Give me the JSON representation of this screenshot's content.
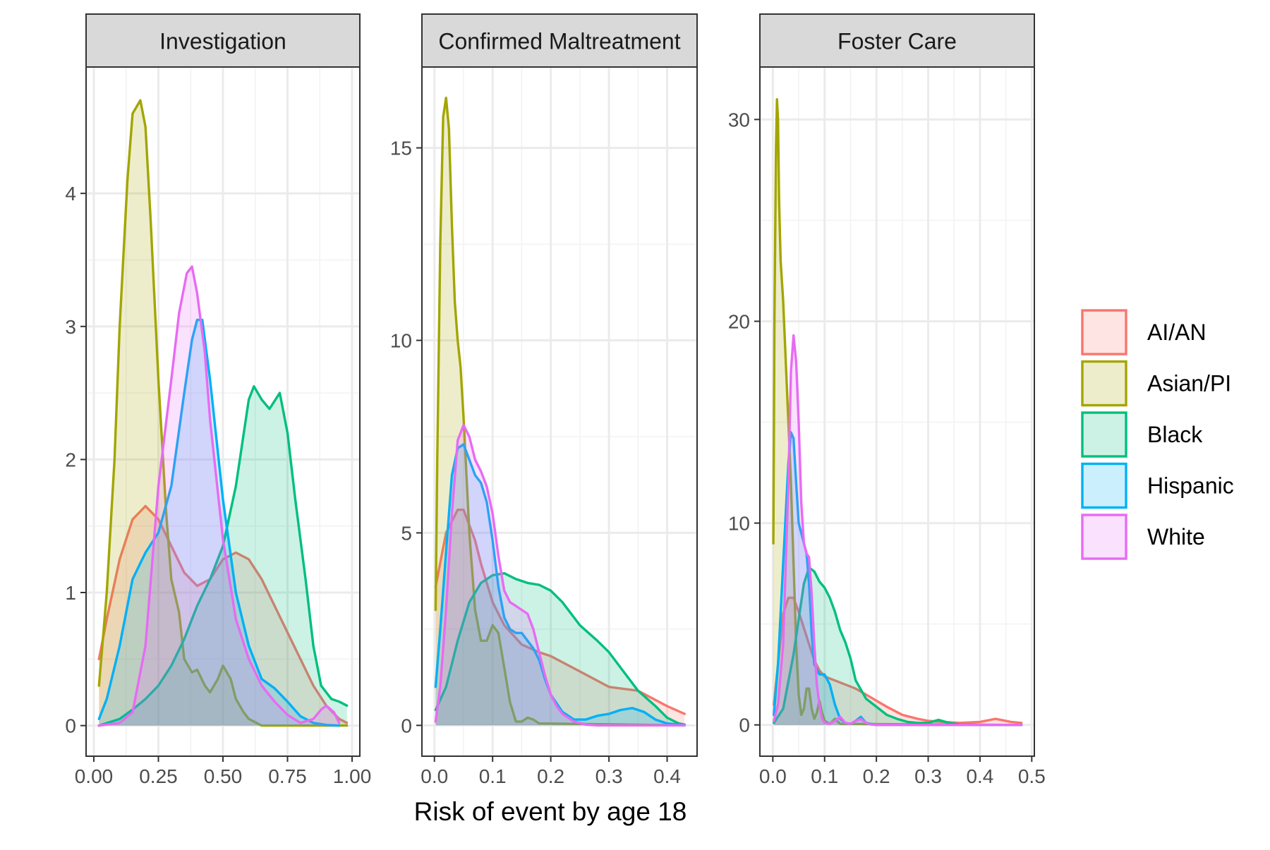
{
  "chart_data": {
    "type": "area",
    "subtype": "density",
    "xlabel": "Risk of event by age 18",
    "ylabel": "",
    "legend": {
      "position": "right",
      "entries": [
        {
          "name": "AI/AN",
          "color": "#F8766D"
        },
        {
          "name": "Asian/PI",
          "color": "#A3A500"
        },
        {
          "name": "Black",
          "color": "#00BF7D"
        },
        {
          "name": "Hispanic",
          "color": "#00B0F6"
        },
        {
          "name": "White",
          "color": "#E76BF3"
        }
      ]
    },
    "grid": true,
    "panels": [
      {
        "title": "Investigation",
        "xlim": [
          -0.03,
          1.03
        ],
        "ylim": [
          -0.23,
          4.95
        ],
        "xticks": [
          0,
          0.25,
          0.5,
          0.75,
          1
        ],
        "xtick_labels": [
          "0.00",
          "0.25",
          "0.50",
          "0.75",
          "1.00"
        ],
        "yticks": [
          0,
          1,
          2,
          3,
          4
        ],
        "ytick_labels": [
          "0",
          "1",
          "2",
          "3",
          "4"
        ],
        "series": [
          {
            "name": "AI/AN",
            "x": [
              0.02,
              0.05,
              0.1,
              0.15,
              0.2,
              0.25,
              0.3,
              0.35,
              0.4,
              0.45,
              0.5,
              0.55,
              0.6,
              0.65,
              0.7,
              0.75,
              0.8,
              0.85,
              0.9,
              0.95,
              0.98
            ],
            "y": [
              0.5,
              0.8,
              1.25,
              1.55,
              1.65,
              1.55,
              1.35,
              1.15,
              1.05,
              1.1,
              1.25,
              1.3,
              1.25,
              1.1,
              0.9,
              0.7,
              0.5,
              0.3,
              0.15,
              0.05,
              0.02
            ]
          },
          {
            "name": "Asian/PI",
            "x": [
              0.02,
              0.05,
              0.08,
              0.1,
              0.13,
              0.15,
              0.18,
              0.2,
              0.22,
              0.25,
              0.28,
              0.3,
              0.33,
              0.35,
              0.38,
              0.4,
              0.43,
              0.45,
              0.48,
              0.5,
              0.53,
              0.55,
              0.58,
              0.6,
              0.63,
              0.65,
              0.98
            ],
            "y": [
              0.3,
              1.0,
              2.0,
              3.0,
              4.1,
              4.6,
              4.7,
              4.5,
              3.8,
              2.6,
              1.6,
              1.1,
              0.85,
              0.5,
              0.4,
              0.42,
              0.3,
              0.25,
              0.35,
              0.45,
              0.35,
              0.2,
              0.1,
              0.05,
              0.02,
              0,
              0
            ]
          },
          {
            "name": "Black",
            "x": [
              0.02,
              0.1,
              0.15,
              0.2,
              0.25,
              0.3,
              0.35,
              0.4,
              0.45,
              0.5,
              0.55,
              0.6,
              0.62,
              0.65,
              0.68,
              0.72,
              0.75,
              0.78,
              0.82,
              0.85,
              0.88,
              0.92,
              0.95,
              0.98
            ],
            "y": [
              0,
              0.05,
              0.12,
              0.2,
              0.3,
              0.45,
              0.65,
              0.9,
              1.1,
              1.35,
              1.8,
              2.45,
              2.55,
              2.45,
              2.38,
              2.5,
              2.2,
              1.7,
              1.1,
              0.6,
              0.3,
              0.2,
              0.18,
              0.15
            ]
          },
          {
            "name": "Hispanic",
            "x": [
              0.02,
              0.05,
              0.1,
              0.15,
              0.2,
              0.25,
              0.3,
              0.35,
              0.38,
              0.4,
              0.42,
              0.45,
              0.5,
              0.55,
              0.6,
              0.65,
              0.7,
              0.75,
              0.8,
              0.85,
              0.9,
              0.95
            ],
            "y": [
              0.05,
              0.2,
              0.6,
              1.1,
              1.3,
              1.45,
              1.8,
              2.5,
              2.9,
              3.05,
              3.05,
              2.6,
              1.7,
              1.0,
              0.6,
              0.35,
              0.28,
              0.18,
              0.07,
              0.02,
              0.005,
              0
            ]
          },
          {
            "name": "White",
            "x": [
              0.02,
              0.1,
              0.15,
              0.2,
              0.25,
              0.3,
              0.33,
              0.36,
              0.38,
              0.4,
              0.43,
              0.45,
              0.5,
              0.55,
              0.6,
              0.65,
              0.7,
              0.75,
              0.8,
              0.85,
              0.88,
              0.9,
              0.93,
              0.95
            ],
            "y": [
              0,
              0.02,
              0.1,
              0.6,
              1.8,
              2.6,
              3.1,
              3.4,
              3.45,
              3.25,
              2.8,
              2.3,
              1.4,
              0.8,
              0.5,
              0.3,
              0.18,
              0.08,
              0.02,
              0.05,
              0.12,
              0.15,
              0.1,
              0.02
            ]
          }
        ]
      },
      {
        "title": "Confirmed Maltreatment",
        "xlim": [
          -0.0215,
          0.4515
        ],
        "ylim": [
          -0.8,
          17.1
        ],
        "xticks": [
          0,
          0.1,
          0.2,
          0.3,
          0.4
        ],
        "xtick_labels": [
          "0.0",
          "0.1",
          "0.2",
          "0.3",
          "0.4"
        ],
        "yticks": [
          0,
          5,
          10,
          15
        ],
        "ytick_labels": [
          "0",
          "5",
          "10",
          "15"
        ],
        "series": [
          {
            "name": "AI/AN",
            "x": [
              0.002,
              0.02,
              0.04,
              0.05,
              0.07,
              0.08,
              0.1,
              0.12,
              0.15,
              0.18,
              0.2,
              0.25,
              0.3,
              0.35,
              0.4,
              0.43
            ],
            "y": [
              3.6,
              5.0,
              5.6,
              5.6,
              4.8,
              4.2,
              3.2,
              2.6,
              2.1,
              1.9,
              1.8,
              1.4,
              1.0,
              0.9,
              0.5,
              0.3
            ]
          },
          {
            "name": "Asian/PI",
            "x": [
              0.002,
              0.005,
              0.01,
              0.015,
              0.02,
              0.025,
              0.03,
              0.035,
              0.04,
              0.045,
              0.05,
              0.06,
              0.07,
              0.08,
              0.09,
              0.1,
              0.11,
              0.12,
              0.13,
              0.14,
              0.15,
              0.16,
              0.17,
              0.18,
              0.43
            ],
            "y": [
              3.0,
              7.0,
              12.5,
              15.8,
              16.3,
              15.5,
              13.0,
              11.0,
              10.0,
              9.3,
              8.0,
              5.0,
              3.0,
              2.2,
              2.2,
              2.6,
              2.4,
              1.5,
              0.6,
              0.1,
              0.1,
              0.2,
              0.15,
              0.05,
              0
            ]
          },
          {
            "name": "Black",
            "x": [
              0.002,
              0.02,
              0.04,
              0.06,
              0.08,
              0.1,
              0.12,
              0.14,
              0.16,
              0.18,
              0.2,
              0.22,
              0.25,
              0.28,
              0.3,
              0.32,
              0.35,
              0.38,
              0.4,
              0.42,
              0.43
            ],
            "y": [
              0.4,
              1.0,
              2.2,
              3.2,
              3.7,
              3.9,
              3.95,
              3.8,
              3.7,
              3.65,
              3.5,
              3.2,
              2.6,
              2.2,
              1.9,
              1.5,
              0.9,
              0.5,
              0.2,
              0.05,
              0.02
            ]
          },
          {
            "name": "Hispanic",
            "x": [
              0.002,
              0.01,
              0.02,
              0.03,
              0.04,
              0.05,
              0.06,
              0.07,
              0.08,
              0.09,
              0.1,
              0.11,
              0.12,
              0.13,
              0.14,
              0.15,
              0.16,
              0.17,
              0.18,
              0.19,
              0.2,
              0.22,
              0.24,
              0.26,
              0.28,
              0.3,
              0.32,
              0.34,
              0.36,
              0.38,
              0.4,
              0.43
            ],
            "y": [
              1.0,
              2.5,
              4.5,
              6.5,
              7.2,
              7.3,
              6.9,
              6.5,
              6.3,
              5.8,
              4.8,
              3.6,
              2.8,
              2.5,
              2.4,
              2.4,
              2.2,
              2.0,
              1.7,
              1.2,
              0.8,
              0.35,
              0.15,
              0.15,
              0.25,
              0.3,
              0.4,
              0.45,
              0.35,
              0.15,
              0.05,
              0.01
            ]
          },
          {
            "name": "White",
            "x": [
              0.002,
              0.01,
              0.02,
              0.03,
              0.04,
              0.05,
              0.06,
              0.07,
              0.08,
              0.09,
              0.1,
              0.11,
              0.12,
              0.13,
              0.14,
              0.15,
              0.16,
              0.17,
              0.18,
              0.19,
              0.2,
              0.21,
              0.22,
              0.24,
              0.26,
              0.28,
              0.43
            ],
            "y": [
              0.1,
              1.0,
              3.0,
              5.5,
              7.4,
              7.8,
              7.5,
              6.9,
              6.6,
              6.2,
              5.5,
              4.4,
              3.5,
              3.2,
              3.1,
              3.0,
              2.9,
              2.5,
              1.9,
              1.3,
              0.8,
              0.5,
              0.3,
              0.1,
              0.02,
              0,
              0
            ]
          }
        ]
      },
      {
        "title": "Foster Care",
        "xlim": [
          -0.025,
          0.505
        ],
        "ylim": [
          -1.55,
          32.6
        ],
        "xticks": [
          0,
          0.1,
          0.2,
          0.3,
          0.4,
          0.5
        ],
        "xtick_labels": [
          "0.0",
          "0.1",
          "0.2",
          "0.3",
          "0.4",
          "0.5"
        ],
        "yticks": [
          0,
          10,
          20,
          30
        ],
        "ytick_labels": [
          "0",
          "10",
          "20",
          "30"
        ],
        "series": [
          {
            "name": "AI/AN",
            "x": [
              0.002,
              0.01,
              0.02,
              0.03,
              0.04,
              0.05,
              0.06,
              0.07,
              0.08,
              0.09,
              0.1,
              0.12,
              0.14,
              0.16,
              0.18,
              0.2,
              0.22,
              0.25,
              0.28,
              0.3,
              0.33,
              0.36,
              0.4,
              0.43,
              0.46,
              0.48
            ],
            "y": [
              1.0,
              3.0,
              5.5,
              6.3,
              6.3,
              5.6,
              4.8,
              4.0,
              3.2,
              2.7,
              2.4,
              2.2,
              2.0,
              1.8,
              1.5,
              1.2,
              0.9,
              0.5,
              0.3,
              0.2,
              0.15,
              0.1,
              0.15,
              0.3,
              0.15,
              0.1
            ]
          },
          {
            "name": "Asian/PI",
            "x": [
              0.001,
              0.003,
              0.006,
              0.008,
              0.01,
              0.012,
              0.015,
              0.02,
              0.025,
              0.03,
              0.035,
              0.04,
              0.045,
              0.05,
              0.055,
              0.06,
              0.065,
              0.07,
              0.075,
              0.08,
              0.085,
              0.09,
              0.095,
              0.1,
              0.11,
              0.12,
              0.13,
              0.48
            ],
            "y": [
              9.0,
              20.0,
              28.5,
              31.0,
              30.0,
              26.0,
              23.0,
              21.0,
              18.0,
              15.0,
              12.0,
              8.0,
              4.0,
              1.5,
              0.5,
              0.8,
              1.8,
              1.8,
              0.8,
              0.3,
              0.6,
              1.2,
              0.6,
              0.2,
              0.05,
              0.3,
              0.05,
              0
            ]
          },
          {
            "name": "Black",
            "x": [
              0.002,
              0.02,
              0.04,
              0.06,
              0.07,
              0.08,
              0.09,
              0.1,
              0.11,
              0.12,
              0.13,
              0.14,
              0.15,
              0.16,
              0.18,
              0.2,
              0.22,
              0.24,
              0.26,
              0.28,
              0.3,
              0.32,
              0.34,
              0.36,
              0.4,
              0.48
            ],
            "y": [
              0.1,
              0.8,
              3.5,
              7.0,
              7.8,
              7.6,
              7.1,
              6.8,
              6.3,
              5.6,
              4.7,
              4.1,
              3.3,
              2.2,
              1.3,
              0.9,
              0.5,
              0.3,
              0.15,
              0.1,
              0.1,
              0.25,
              0.1,
              0.02,
              0,
              0
            ]
          },
          {
            "name": "Hispanic",
            "x": [
              0.002,
              0.01,
              0.02,
              0.03,
              0.035,
              0.04,
              0.045,
              0.05,
              0.055,
              0.06,
              0.065,
              0.07,
              0.075,
              0.08,
              0.09,
              0.1,
              0.11,
              0.12,
              0.13,
              0.14,
              0.15,
              0.16,
              0.17,
              0.18,
              0.2,
              0.48
            ],
            "y": [
              0.5,
              3.0,
              8.0,
              13.0,
              14.5,
              14.2,
              12.0,
              10.0,
              9.5,
              9.0,
              8.5,
              7.0,
              4.5,
              3.0,
              2.5,
              2.5,
              2.0,
              1.0,
              0.3,
              0.1,
              0.05,
              0.2,
              0.4,
              0.1,
              0,
              0
            ]
          },
          {
            "name": "White",
            "x": [
              0.002,
              0.01,
              0.02,
              0.03,
              0.035,
              0.04,
              0.045,
              0.05,
              0.055,
              0.06,
              0.065,
              0.07,
              0.075,
              0.08,
              0.085,
              0.09,
              0.095,
              0.1,
              0.11,
              0.12,
              0.13,
              0.14,
              0.15,
              0.16,
              0.17,
              0.18,
              0.19,
              0.2,
              0.48
            ],
            "y": [
              0.2,
              1.0,
              4.0,
              12.0,
              17.5,
              19.3,
              18.0,
              15.0,
              11.0,
              9.0,
              8.5,
              8.3,
              6.5,
              4.0,
              2.0,
              1.0,
              0.3,
              0.1,
              0.05,
              0.2,
              0.4,
              0.1,
              0.05,
              0.2,
              0.3,
              0.1,
              0.02,
              0,
              0
            ]
          }
        ]
      }
    ]
  }
}
